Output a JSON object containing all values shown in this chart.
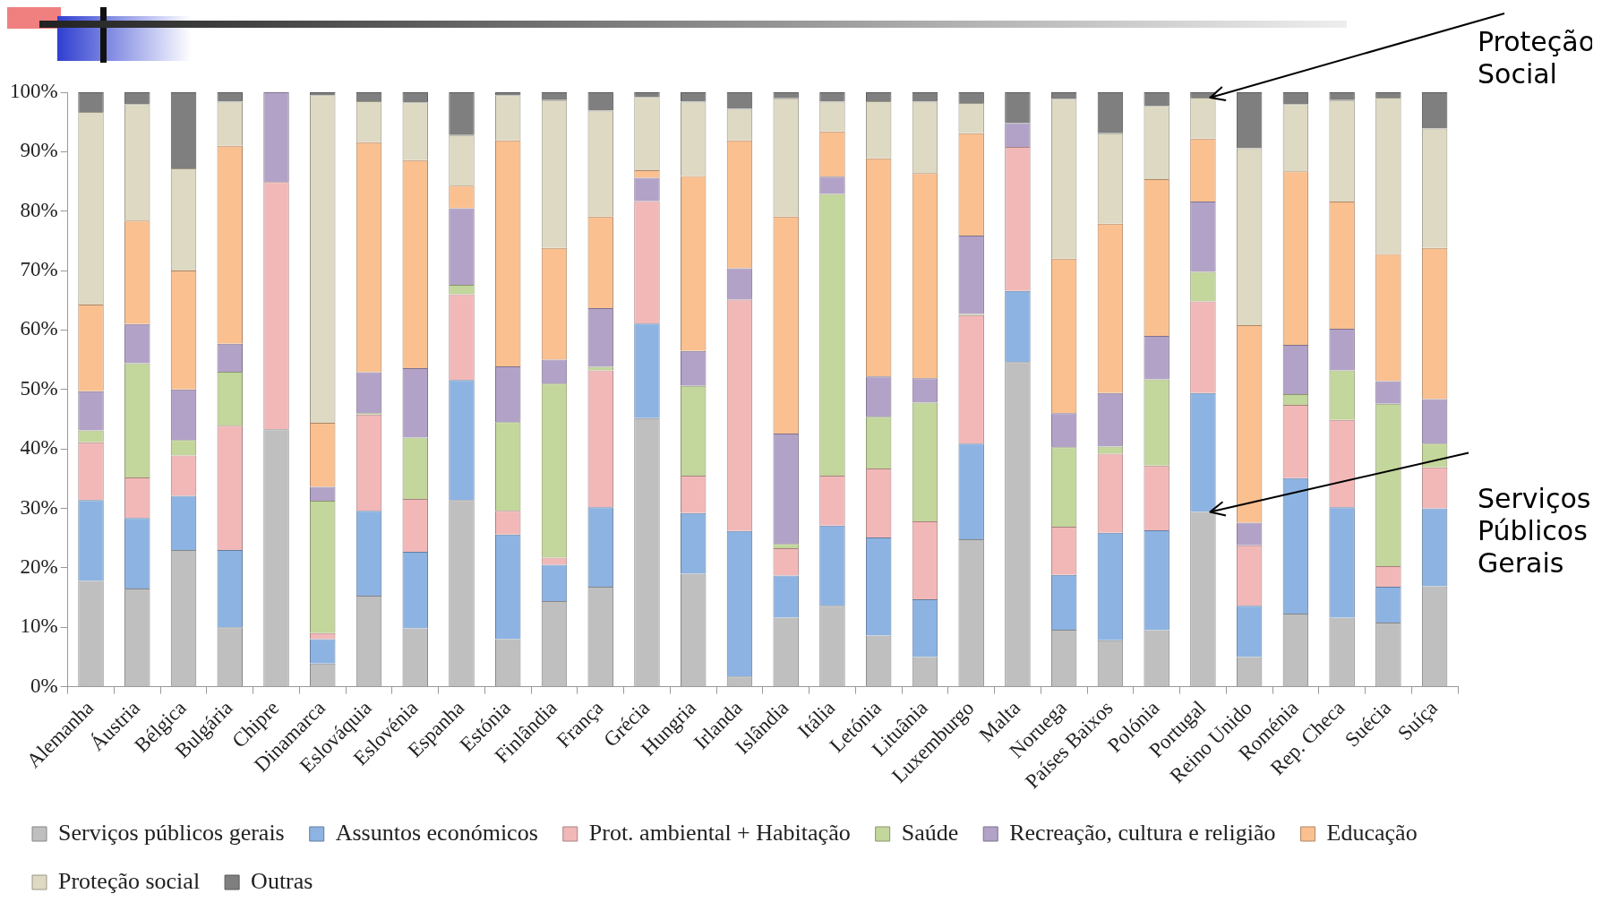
{
  "chart_data": {
    "type": "bar",
    "stacked": true,
    "categories": [
      "Alemanha",
      "Áustria",
      "Bélgica",
      "Bulgária",
      "Chipre",
      "Dinamarca",
      "Eslováquia",
      "Eslovénia",
      "Espanha",
      "Estónia",
      "Finlândia",
      "França",
      "Grécia",
      "Hungria",
      "Irlanda",
      "Islândia",
      "Itália",
      "Letónia",
      "Lituânia",
      "Luxemburgo",
      "Malta",
      "Noruega",
      "Países Baixos",
      "Polónia",
      "Portugal",
      "Reino Unido",
      "Roménia",
      "Rep. Checa",
      "Suécia",
      "Suíça"
    ],
    "series": [
      {
        "name": "Serviços públicos gerais",
        "color": "#bfbfbf",
        "values": [
          17.8,
          16.5,
          23.0,
          10.0,
          43.3,
          3.9,
          15.3,
          9.8,
          31.4,
          8.0,
          14.4,
          16.8,
          45.2,
          19.0,
          1.7,
          11.6,
          13.6,
          8.6,
          5.0,
          24.8,
          54.6,
          9.6,
          7.8,
          9.5,
          29.4,
          5.0,
          12.3,
          11.6,
          10.8,
          16.9
        ]
      },
      {
        "name": "Assuntos económicos",
        "color": "#8db3e2",
        "values": [
          13.6,
          11.9,
          9.1,
          13.0,
          0,
          4.1,
          14.3,
          12.9,
          20.2,
          17.6,
          6.1,
          13.4,
          15.9,
          10.2,
          24.5,
          7.1,
          13.5,
          16.5,
          9.7,
          16.1,
          12.0,
          9.2,
          18.1,
          16.8,
          20.0,
          8.6,
          22.8,
          18.6,
          6.0,
          13.1
        ]
      },
      {
        "name": "Prot. ambiental + Habitação",
        "color": "#f2b8b8",
        "values": [
          9.7,
          6.8,
          6.8,
          20.9,
          41.6,
          1.0,
          16.2,
          8.9,
          14.4,
          4.0,
          1.2,
          23.0,
          20.6,
          6.3,
          38.9,
          4.6,
          8.4,
          11.6,
          13.1,
          21.6,
          24.2,
          8.1,
          13.3,
          10.9,
          15.4,
          10.2,
          12.3,
          14.7,
          3.5,
          6.9
        ]
      },
      {
        "name": "Saúde",
        "color": "#c3d69b",
        "values": [
          2.0,
          19.2,
          2.6,
          9.1,
          0,
          22.3,
          0.2,
          10.3,
          1.6,
          14.9,
          29.3,
          0.6,
          0,
          15.1,
          0,
          0.7,
          47.4,
          8.7,
          20.0,
          0.2,
          0,
          13.4,
          1.2,
          14.5,
          5.0,
          0,
          1.8,
          8.3,
          27.3,
          4.0
        ]
      },
      {
        "name": "Recreação, cultura e religião",
        "color": "#b3a2c7",
        "values": [
          6.6,
          6.6,
          8.5,
          4.7,
          15.1,
          2.3,
          6.9,
          11.7,
          12.9,
          9.4,
          4.0,
          9.9,
          3.9,
          5.9,
          5.3,
          18.6,
          2.9,
          6.8,
          4.1,
          13.2,
          4.0,
          5.7,
          9.0,
          7.3,
          11.8,
          3.8,
          8.3,
          7.0,
          3.8,
          7.5
        ]
      },
      {
        "name": "Educação",
        "color": "#fac090",
        "values": [
          14.6,
          17.4,
          20.0,
          33.3,
          0,
          10.8,
          38.7,
          35.0,
          3.8,
          38.0,
          18.8,
          15.4,
          1.3,
          29.4,
          21.5,
          36.5,
          7.6,
          36.7,
          34.5,
          17.2,
          0,
          26.0,
          28.5,
          26.4,
          10.6,
          33.2,
          29.2,
          21.4,
          21.4,
          25.4
        ]
      },
      {
        "name": "Proteção social",
        "color": "#ddd9c3",
        "values": [
          32.4,
          19.6,
          17.2,
          7.4,
          0,
          55.1,
          6.9,
          9.7,
          8.5,
          7.6,
          24.9,
          17.8,
          12.3,
          12.5,
          5.3,
          19.9,
          5.0,
          9.6,
          12.0,
          5.1,
          0,
          26.9,
          15.2,
          12.3,
          6.9,
          29.8,
          11.3,
          17.1,
          26.3,
          20.1
        ]
      },
      {
        "name": "Outras",
        "color": "#7f7f7f",
        "values": [
          3.3,
          2.0,
          12.8,
          1.6,
          0,
          0.5,
          1.5,
          1.7,
          7.2,
          0.5,
          1.3,
          3.1,
          0.8,
          1.6,
          2.8,
          1.0,
          1.6,
          1.5,
          1.6,
          1.8,
          5.2,
          1.1,
          6.9,
          2.3,
          0.9,
          9.4,
          2.0,
          1.3,
          0.9,
          6.1
        ]
      }
    ],
    "ylim": [
      0,
      100
    ],
    "yticks": [
      {
        "value": 0,
        "label": "0%"
      },
      {
        "value": 10,
        "label": "10%"
      },
      {
        "value": 20,
        "label": "20%"
      },
      {
        "value": 30,
        "label": "30%"
      },
      {
        "value": 40,
        "label": "40%"
      },
      {
        "value": 50,
        "label": "50%"
      },
      {
        "value": 60,
        "label": "60%"
      },
      {
        "value": 70,
        "label": "70%"
      },
      {
        "value": 80,
        "label": "80%"
      },
      {
        "value": 90,
        "label": "90%"
      },
      {
        "value": 100,
        "label": "100%"
      }
    ],
    "grid": false,
    "legend": "bottom",
    "annotations": [
      {
        "text": "Proteção Social",
        "x": "Portugal",
        "y": 99.1
      },
      {
        "text": "Serviços Públicos Gerais",
        "x": "Portugal",
        "y": 29.4
      }
    ]
  }
}
